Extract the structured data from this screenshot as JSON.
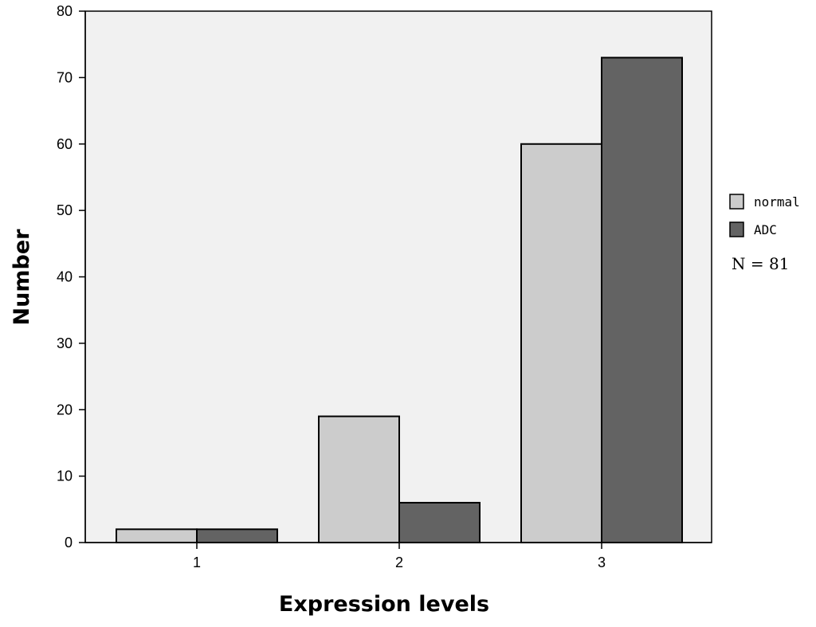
{
  "chart_data": {
    "type": "bar",
    "categories": [
      "1",
      "2",
      "3"
    ],
    "series": [
      {
        "name": "normal",
        "values": [
          2,
          19,
          60
        ],
        "color": "#cccccc"
      },
      {
        "name": "ADC",
        "values": [
          2,
          6,
          73
        ],
        "color": "#636363"
      }
    ],
    "xlabel": "Expression levels",
    "ylabel": "Number",
    "ylim": [
      0,
      80
    ],
    "yticks": [
      0,
      10,
      20,
      30,
      40,
      50,
      60,
      70,
      80
    ],
    "grid": false,
    "legend_position": "right",
    "annotation": "N = 81",
    "plot_background": "#f1f1f1"
  }
}
